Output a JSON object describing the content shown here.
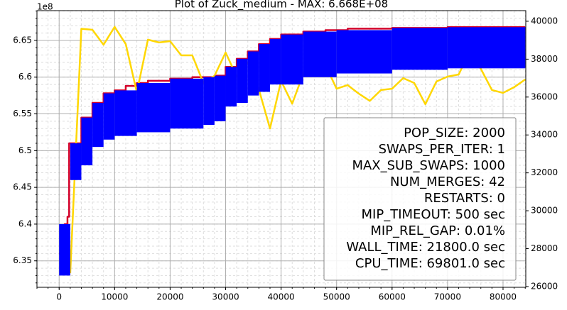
{
  "chart_data": {
    "type": "line",
    "title": "Plot of Zuck_medium - MAX: 6.668E+08",
    "offset_label": "1e8",
    "xlim": [
      -4000,
      84100
    ],
    "xticks": [
      0,
      10000,
      20000,
      30000,
      40000,
      50000,
      60000,
      70000,
      80000
    ],
    "ylim": [
      6.314,
      6.6905
    ],
    "yticks": [
      6.35,
      6.4,
      6.45,
      6.5,
      6.55,
      6.6,
      6.65
    ],
    "y2lim": [
      25960,
      40560
    ],
    "y2ticks": [
      26000,
      28000,
      30000,
      32000,
      34000,
      36000,
      38000,
      40000
    ],
    "grid": true,
    "minor_grid": true,
    "band": {
      "color": "#0000ff",
      "x": [
        0,
        2000,
        4000,
        6000,
        8000,
        10000,
        14000,
        20000,
        26000,
        28000,
        30000,
        32000,
        34000,
        36000,
        38000,
        40000,
        44000,
        50000,
        60000,
        70000,
        84000
      ],
      "upper": [
        6.4,
        6.51,
        6.545,
        6.565,
        6.578,
        6.582,
        6.592,
        6.598,
        6.6,
        6.602,
        6.614,
        6.625,
        6.635,
        6.645,
        6.652,
        6.658,
        6.662,
        6.664,
        6.667,
        6.668,
        6.668
      ],
      "lower": [
        6.33,
        6.46,
        6.48,
        6.505,
        6.515,
        6.52,
        6.525,
        6.53,
        6.535,
        6.54,
        6.56,
        6.565,
        6.575,
        6.58,
        6.59,
        6.59,
        6.6,
        6.605,
        6.61,
        6.612,
        6.613
      ]
    },
    "series": [
      {
        "color": "#d4002a",
        "drawstyle": "steps-post",
        "x": [
          0,
          500,
          1000,
          1500,
          1800,
          2000,
          4000,
          6000,
          8000,
          10000,
          12000,
          14000,
          16000,
          20000,
          24000,
          28000,
          30000,
          32000,
          34000,
          36000,
          38000,
          40000,
          44000,
          48000,
          52000,
          60000,
          70000,
          84000
        ],
        "values": [
          6.36,
          6.39,
          6.4,
          6.41,
          6.51,
          6.51,
          6.545,
          6.565,
          6.578,
          6.582,
          6.588,
          6.592,
          6.595,
          6.598,
          6.6,
          6.602,
          6.614,
          6.625,
          6.635,
          6.645,
          6.652,
          6.658,
          6.662,
          6.664,
          6.666,
          6.667,
          6.668,
          6.668
        ]
      },
      {
        "color": "#ffd700",
        "axis": "y2",
        "x": [
          2000,
          4000,
          6000,
          8000,
          10000,
          12000,
          14000,
          16000,
          18000,
          20000,
          22000,
          24000,
          26000,
          28000,
          30000,
          32000,
          34000,
          36000,
          38000,
          40000,
          42000,
          44000,
          46000,
          48000,
          50000,
          52000,
          54000,
          56000,
          58000,
          60000,
          62000,
          64000,
          66000,
          68000,
          70000,
          72000,
          74000,
          76000,
          78000,
          80000,
          82000,
          84000
        ],
        "values": [
          26700,
          39600,
          39550,
          38760,
          39700,
          38800,
          36250,
          39030,
          38880,
          38950,
          38200,
          38200,
          36740,
          37120,
          38350,
          37080,
          37830,
          36400,
          34340,
          36850,
          35650,
          37230,
          38240,
          37680,
          36440,
          36630,
          36180,
          35800,
          36370,
          36440,
          37000,
          36740,
          35620,
          36820,
          37080,
          37190,
          38390,
          37490,
          36370,
          36220,
          36520,
          36930
        ]
      }
    ],
    "annotations": [
      "POP_SIZE: 2000",
      "SWAPS_PER_ITER: 1",
      "MAX_SUB_SWAPS: 1000",
      "NUM_MERGES: 42",
      "RESTARTS: 0",
      "MIP_TIMEOUT: 500 sec",
      "MIP_REL_GAP: 0.01%",
      "WALL_TIME: 21800.0 sec",
      "CPU_TIME: 69801.0 sec"
    ]
  }
}
